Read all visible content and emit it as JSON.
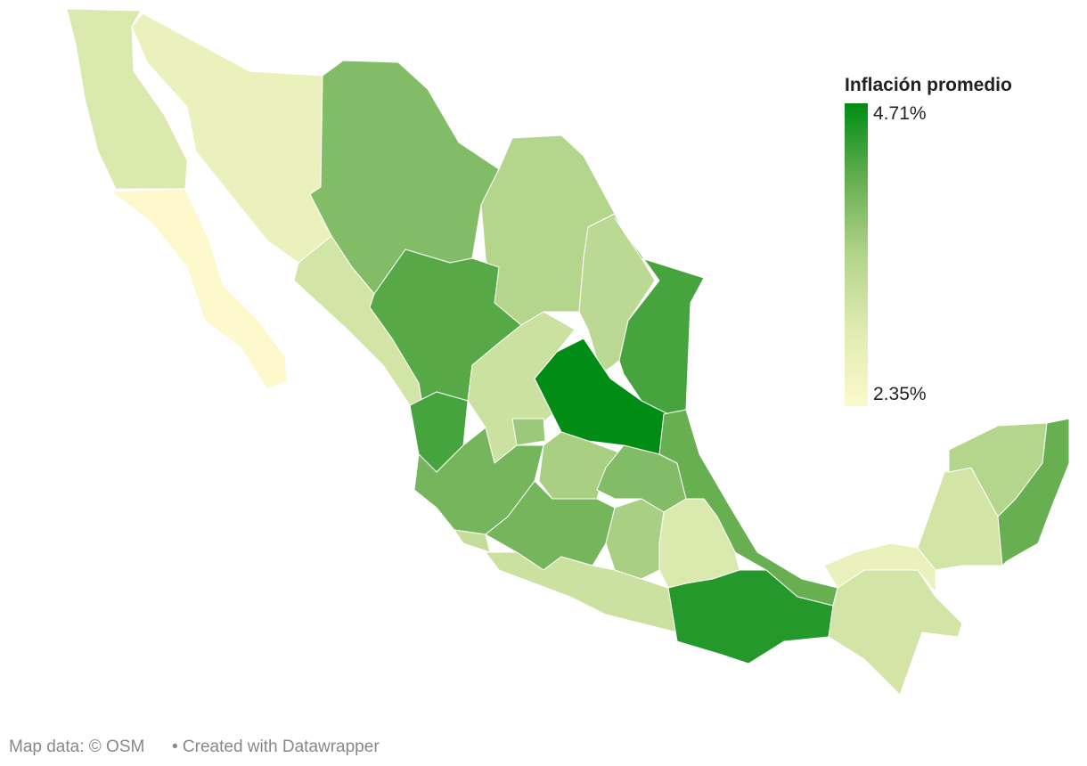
{
  "map": {
    "legend": {
      "title": "Inflación promedio",
      "range": [
        2.35,
        4.71
      ],
      "ticks": [
        {
          "value": 4.71,
          "label": "4.71%"
        },
        {
          "value": 2.35,
          "label": "2.35%"
        }
      ],
      "colors": [
        "#fdf9cc",
        "#dfebb1",
        "#b2d48a",
        "#65ae50",
        "#008c15"
      ]
    },
    "values": [
      3.0,
      2.35,
      2.7,
      3.9,
      3.5,
      3.4,
      4.3,
      3.1,
      4.2,
      3.2,
      4.71,
      4.3,
      4.0,
      3.7,
      3.6,
      3.9,
      4.1,
      4.0,
      3.3,
      3.2,
      3.6,
      3.0,
      4.5,
      3.1,
      2.7,
      3.1,
      3.5,
      4.1
    ],
    "footer": {
      "source": "Map data: © OSM",
      "credit": "• Created with Datawrapper"
    }
  }
}
